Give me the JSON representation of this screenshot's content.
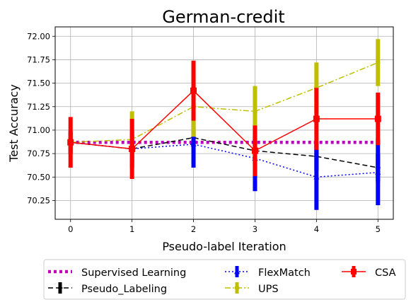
{
  "chart_data": {
    "type": "line",
    "title": "German-credit",
    "xlabel": "Pseudo-label Iteration",
    "ylabel": "Test Accuracy",
    "x": [
      0,
      1,
      2,
      3,
      4,
      5
    ],
    "xlim": [
      -0.25,
      5.25
    ],
    "ylim": [
      70.05,
      72.1
    ],
    "xticks": [
      "0",
      "1",
      "2",
      "3",
      "4",
      "5"
    ],
    "yticks": [
      "70.25",
      "70.50",
      "70.75",
      "71.00",
      "71.25",
      "71.50",
      "71.75",
      "72.00"
    ],
    "grid": true,
    "legend_position": "bottom",
    "series": [
      {
        "name": "Supervised Learning",
        "color": "#bf00bf",
        "style": "dotted",
        "values": [
          70.87,
          70.87,
          70.87,
          70.87,
          70.87,
          70.87
        ],
        "errors": null
      },
      {
        "name": "Pseudo_Labeling",
        "color": "#000000",
        "style": "dashed",
        "values": [
          70.87,
          70.8,
          70.92,
          70.78,
          70.72,
          70.6
        ],
        "errors": [
          0.1,
          0.15,
          0.12,
          0.15,
          0.15,
          0.15
        ]
      },
      {
        "name": "FlexMatch",
        "color": "#0000ff",
        "style": "dotted-marker",
        "values": [
          70.87,
          70.8,
          70.85,
          70.7,
          70.5,
          70.55
        ],
        "errors": [
          0.12,
          0.2,
          0.25,
          0.35,
          0.35,
          0.35
        ]
      },
      {
        "name": "UPS",
        "color": "#bfbf00",
        "style": "dashdot",
        "values": [
          70.87,
          70.9,
          71.25,
          71.2,
          71.45,
          71.72
        ],
        "errors": [
          0.1,
          0.3,
          0.32,
          0.27,
          0.27,
          0.25
        ]
      },
      {
        "name": "CSA",
        "color": "#ff0000",
        "style": "solid",
        "values": [
          70.87,
          70.8,
          71.42,
          70.78,
          71.12,
          71.12
        ],
        "errors": [
          0.27,
          0.32,
          0.32,
          0.27,
          0.33,
          0.28
        ]
      }
    ]
  }
}
